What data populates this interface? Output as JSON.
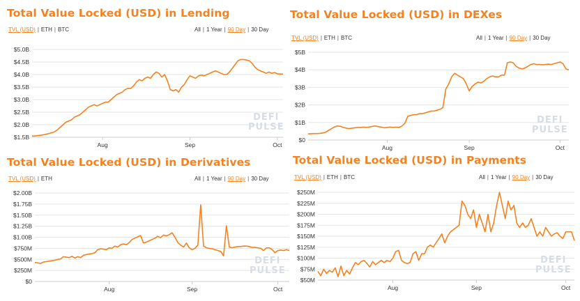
{
  "colors": {
    "accent": "#f5821f",
    "text": "#333333",
    "grid": "#e5e5e5",
    "watermark": "#d8dde4"
  },
  "currencies_common": {
    "eth": "ETH",
    "btc": "BTC"
  },
  "periods": {
    "all": "All",
    "one_year": "1 Year",
    "ninety_day": "90 Day",
    "thirty_day": "30 Day"
  },
  "watermark": {
    "line1": "DEFI",
    "line2": "PULSE"
  },
  "panels": [
    {
      "title": "Total Value Locked (USD) in Lending",
      "currencies": [
        "TVL (USD)",
        "ETH",
        "BTC"
      ],
      "selected_currency": "TVL (USD)",
      "selected_period": "90 Day"
    },
    {
      "title": "Total Value Locked (USD) in DEXes",
      "currencies": [
        "TVL (USD)",
        "ETH",
        "BTC"
      ],
      "selected_currency": "TVL (USD)",
      "selected_period": "90 Day"
    },
    {
      "title": "Total Value Locked (USD) in Derivatives",
      "currencies": [
        "TVL (USD)",
        "ETH"
      ],
      "selected_currency": "TVL (USD)",
      "selected_period": "90 Day"
    },
    {
      "title": "Total Value Locked (USD) in Payments",
      "currencies": [
        "TVL (USD)",
        "ETH",
        "BTC"
      ],
      "selected_currency": "TVL (USD)",
      "selected_period": "90 Day"
    }
  ],
  "chart_data": [
    {
      "type": "line",
      "title": "Total Value Locked (USD) in Lending",
      "series": [
        {
          "name": "TVL (USD)",
          "unit": "billion USD"
        }
      ],
      "x": [
        0,
        1,
        2,
        3,
        4,
        5,
        6,
        7,
        8,
        9,
        10,
        11,
        12,
        13,
        14,
        15,
        16,
        17,
        18,
        19,
        20,
        21,
        22,
        23,
        24,
        25,
        26,
        27,
        28,
        29,
        30,
        31,
        32,
        33,
        34,
        35,
        36,
        37,
        38,
        39,
        40,
        41,
        42,
        43,
        44,
        45,
        46,
        47,
        48,
        49,
        50,
        51,
        52,
        53,
        54,
        55,
        56,
        57,
        58,
        59,
        60,
        61,
        62,
        63,
        64,
        65,
        66,
        67,
        68,
        69,
        70,
        71,
        72,
        73,
        74,
        75,
        76,
        77,
        78,
        79,
        80,
        81,
        82,
        83,
        84,
        85,
        86,
        87,
        88,
        89
      ],
      "values": [
        1.55,
        1.55,
        1.57,
        1.58,
        1.6,
        1.62,
        1.65,
        1.68,
        1.72,
        1.8,
        1.9,
        2.0,
        2.1,
        2.15,
        2.2,
        2.3,
        2.35,
        2.4,
        2.5,
        2.6,
        2.7,
        2.75,
        2.8,
        2.75,
        2.8,
        2.85,
        2.9,
        2.9,
        3.0,
        3.1,
        3.2,
        3.25,
        3.3,
        3.4,
        3.45,
        3.45,
        3.55,
        3.7,
        3.8,
        3.75,
        3.85,
        3.9,
        3.85,
        4.0,
        4.1,
        4.05,
        3.9,
        4.0,
        3.75,
        3.4,
        3.35,
        3.4,
        3.3,
        3.5,
        3.6,
        3.8,
        3.95,
        3.9,
        3.85,
        3.95,
        3.98,
        3.95,
        4.0,
        4.05,
        4.1,
        4.15,
        4.1,
        4.05,
        4.0,
        4.0,
        4.1,
        4.25,
        4.4,
        4.55,
        4.6,
        4.6,
        4.58,
        4.55,
        4.45,
        4.3,
        4.2,
        4.15,
        4.1,
        4.05,
        4.1,
        4.05,
        4.08,
        4.03,
        4.02,
        4.02
      ],
      "yticks": [
        "$1.5B",
        "$2.0B",
        "$2.5B",
        "$3.0B",
        "$3.5B",
        "$4.0B",
        "$4.5B",
        "$5.0B"
      ],
      "ylim": [
        1.5,
        5.0
      ],
      "xticks": [
        "Aug",
        "Sep",
        "Oct"
      ],
      "xtick_positions": [
        25,
        56,
        87
      ],
      "xlim": [
        0,
        89
      ]
    },
    {
      "type": "line",
      "title": "Total Value Locked (USD) in DEXes",
      "series": [
        {
          "name": "TVL (USD)",
          "unit": "billion USD"
        }
      ],
      "x": [
        0,
        1,
        2,
        3,
        4,
        5,
        6,
        7,
        8,
        9,
        10,
        11,
        12,
        13,
        14,
        15,
        16,
        17,
        18,
        19,
        20,
        21,
        22,
        23,
        24,
        25,
        26,
        27,
        28,
        29,
        30,
        31,
        32,
        33,
        34,
        35,
        36,
        37,
        38,
        39,
        40,
        41,
        42,
        43,
        44,
        45,
        46,
        47,
        48,
        49,
        50,
        51,
        52,
        53,
        54,
        55,
        56,
        57,
        58,
        59,
        60,
        61,
        62,
        63,
        64,
        65,
        66,
        67,
        68,
        69,
        70,
        71,
        72,
        73,
        74,
        75,
        76,
        77,
        78,
        79,
        80,
        81,
        82,
        83,
        84,
        85,
        86,
        87,
        88,
        89
      ],
      "values": [
        0.35,
        0.36,
        0.37,
        0.37,
        0.38,
        0.4,
        0.45,
        0.55,
        0.65,
        0.75,
        0.8,
        0.78,
        0.72,
        0.68,
        0.65,
        0.68,
        0.7,
        0.72,
        0.72,
        0.74,
        0.72,
        0.75,
        0.78,
        0.8,
        0.76,
        0.74,
        0.7,
        0.72,
        0.74,
        0.72,
        0.74,
        0.72,
        0.8,
        0.95,
        1.35,
        1.4,
        1.45,
        1.45,
        1.5,
        1.5,
        1.55,
        1.6,
        1.65,
        1.65,
        1.7,
        1.75,
        1.85,
        2.9,
        3.2,
        3.6,
        3.8,
        3.7,
        3.6,
        3.5,
        3.2,
        2.8,
        3.05,
        3.2,
        3.3,
        3.25,
        3.35,
        3.5,
        3.6,
        3.65,
        3.6,
        3.6,
        3.7,
        3.7,
        4.4,
        4.45,
        4.4,
        4.2,
        4.1,
        4.05,
        4.1,
        4.2,
        4.3,
        4.35,
        4.3,
        4.3,
        4.28,
        4.3,
        4.32,
        4.3,
        4.35,
        4.4,
        4.45,
        4.35,
        4.05,
        4.0
      ],
      "yticks": [
        "$0",
        "$1B",
        "$2B",
        "$3B",
        "$4B",
        "$5B"
      ],
      "ylim": [
        0,
        5
      ],
      "xticks": [
        "Aug",
        "Sep",
        "Oct"
      ],
      "xtick_positions": [
        27,
        55,
        86
      ],
      "xlim": [
        0,
        89
      ]
    },
    {
      "type": "line",
      "title": "Total Value Locked (USD) in Derivatives",
      "series": [
        {
          "name": "TVL (USD)",
          "unit": "million USD"
        }
      ],
      "x": [
        0,
        1,
        2,
        3,
        4,
        5,
        6,
        7,
        8,
        9,
        10,
        11,
        12,
        13,
        14,
        15,
        16,
        17,
        18,
        19,
        20,
        21,
        22,
        23,
        24,
        25,
        26,
        27,
        28,
        29,
        30,
        31,
        32,
        33,
        34,
        35,
        36,
        37,
        38,
        39,
        40,
        41,
        42,
        43,
        44,
        45,
        46,
        47,
        48,
        49,
        50,
        51,
        52,
        53,
        54,
        55,
        56,
        57,
        58,
        59,
        60,
        61,
        62,
        63,
        64,
        65,
        66,
        67,
        68,
        69,
        70,
        71,
        72,
        73,
        74,
        75,
        76,
        77,
        78,
        79,
        80,
        81,
        82,
        83,
        84,
        85,
        86,
        87,
        88,
        89
      ],
      "values": [
        430,
        420,
        410,
        440,
        450,
        460,
        470,
        480,
        500,
        510,
        560,
        550,
        540,
        570,
        530,
        560,
        540,
        590,
        610,
        620,
        630,
        650,
        720,
        740,
        730,
        720,
        760,
        750,
        800,
        780,
        830,
        850,
        830,
        880,
        950,
        980,
        1010,
        1040,
        870,
        890,
        920,
        950,
        980,
        1020,
        990,
        1050,
        1030,
        1060,
        1100,
        1000,
        880,
        820,
        780,
        870,
        760,
        720,
        750,
        820,
        1730,
        800,
        760,
        750,
        740,
        720,
        700,
        680,
        580,
        1260,
        780,
        760,
        780,
        790,
        790,
        800,
        800,
        790,
        770,
        770,
        760,
        750,
        700,
        760,
        760,
        720,
        650,
        700,
        710,
        700,
        720,
        700
      ],
      "yticks": [
        "$0",
        "$250M",
        "$500M",
        "$750M",
        "$1.00B",
        "$1.25B",
        "$1.50B",
        "$1.75B",
        "$2.00B"
      ],
      "ylim": [
        0,
        2000
      ],
      "xticks": [
        "Aug",
        "Sep",
        "Oct"
      ],
      "xtick_positions": [
        26,
        55,
        85
      ],
      "xlim": [
        0,
        89
      ]
    },
    {
      "type": "line",
      "title": "Total Value Locked (USD) in Payments",
      "series": [
        {
          "name": "TVL (USD)",
          "unit": "million USD"
        }
      ],
      "x": [
        0,
        1,
        2,
        3,
        4,
        5,
        6,
        7,
        8,
        9,
        10,
        11,
        12,
        13,
        14,
        15,
        16,
        17,
        18,
        19,
        20,
        21,
        22,
        23,
        24,
        25,
        26,
        27,
        28,
        29,
        30,
        31,
        32,
        33,
        34,
        35,
        36,
        37,
        38,
        39,
        40,
        41,
        42,
        43,
        44,
        45,
        46,
        47,
        48,
        49,
        50,
        51,
        52,
        53,
        54,
        55,
        56,
        57,
        58,
        59,
        60,
        61,
        62,
        63,
        64,
        65,
        66,
        67,
        68,
        69,
        70,
        71,
        72,
        73,
        74,
        75,
        76,
        77,
        78,
        79,
        80,
        81,
        82,
        83,
        84,
        85,
        86,
        87,
        88,
        89
      ],
      "values": [
        70,
        60,
        75,
        65,
        72,
        68,
        78,
        58,
        82,
        60,
        72,
        64,
        78,
        90,
        85,
        92,
        95,
        88,
        80,
        92,
        85,
        90,
        95,
        90,
        95,
        92,
        100,
        115,
        118,
        95,
        90,
        88,
        90,
        110,
        115,
        95,
        110,
        110,
        125,
        130,
        125,
        135,
        145,
        155,
        135,
        150,
        160,
        165,
        170,
        175,
        230,
        220,
        200,
        190,
        210,
        170,
        200,
        180,
        160,
        200,
        160,
        180,
        220,
        250,
        220,
        190,
        230,
        210,
        220,
        180,
        170,
        180,
        170,
        175,
        190,
        170,
        150,
        160,
        150,
        170,
        160,
        150,
        155,
        158,
        150,
        145,
        160,
        160,
        160,
        140
      ],
      "yticks": [
        "$50M",
        "$75M",
        "$100M",
        "$125M",
        "$150M",
        "$175M",
        "$200M",
        "$225M",
        "$250M"
      ],
      "ylim": [
        50,
        250
      ],
      "xticks": [
        "Aug",
        "Sep",
        "Oct"
      ],
      "xtick_positions": [
        26,
        55,
        86
      ],
      "xlim": [
        0,
        89
      ]
    }
  ]
}
